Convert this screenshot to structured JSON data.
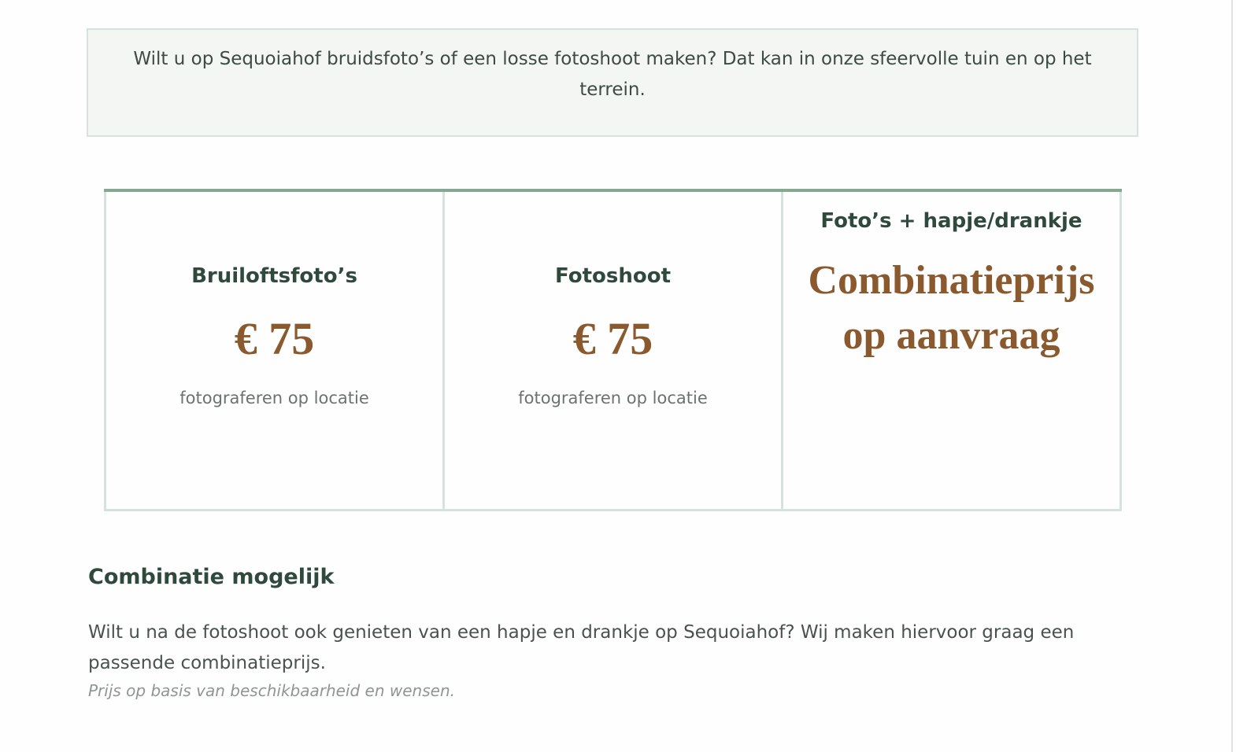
{
  "intro": {
    "text": "Wilt u op Sequoiahof bruidsfoto’s of een losse fotoshoot maken? Dat kan in onze sfeervolle tuin en op het terrein."
  },
  "pricing": [
    {
      "title": "Bruiloftsfoto’s",
      "price": "€ 75",
      "subtitle": "fotograferen op locatie"
    },
    {
      "title": "Fotoshoot",
      "price": "€ 75",
      "subtitle": "fotograferen op locatie"
    },
    {
      "title": "Foto’s + hapje/drankje",
      "price_line1": "Combinatieprijs",
      "price_line2": "op aanvraag"
    }
  ],
  "combination": {
    "heading": "Combinatie mogelijk",
    "text": "Wilt u na de fotoshoot ook genieten van een hapje en drankje op Sequoiahof? Wij maken hiervoor graag een passende combinatieprijs.",
    "note": "Prijs op basis van beschikbaarheid en wensen."
  },
  "colors": {
    "accent": "#8a5a2e",
    "heading": "#2f4a3c",
    "border": "#d5e3dc",
    "top_border": "#86a892"
  }
}
